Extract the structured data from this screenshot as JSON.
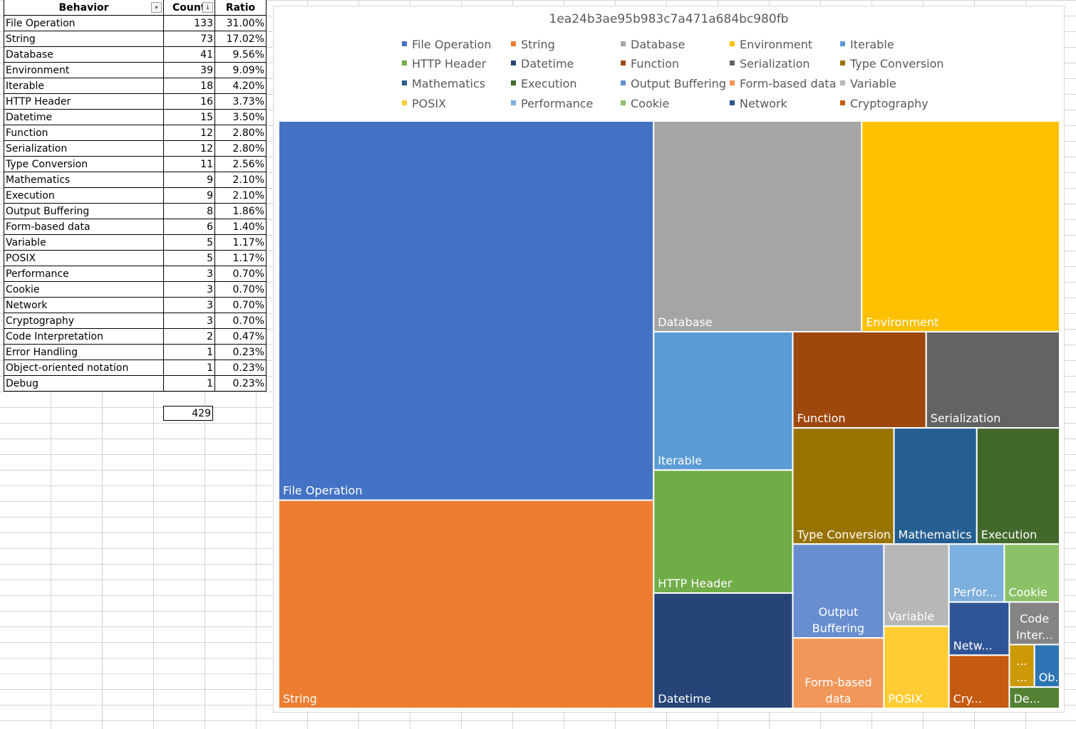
{
  "table": {
    "headers": {
      "behavior": "Behavior",
      "count": "Count",
      "ratio": "Ratio"
    },
    "rows": [
      {
        "behavior": "File Operation",
        "count": "133",
        "ratio": "31.00%"
      },
      {
        "behavior": "String",
        "count": "73",
        "ratio": "17.02%"
      },
      {
        "behavior": "Database",
        "count": "41",
        "ratio": "9.56%"
      },
      {
        "behavior": "Environment",
        "count": "39",
        "ratio": "9.09%"
      },
      {
        "behavior": "Iterable",
        "count": "18",
        "ratio": "4.20%"
      },
      {
        "behavior": "HTTP Header",
        "count": "16",
        "ratio": "3.73%"
      },
      {
        "behavior": "Datetime",
        "count": "15",
        "ratio": "3.50%"
      },
      {
        "behavior": "Function",
        "count": "12",
        "ratio": "2.80%"
      },
      {
        "behavior": "Serialization",
        "count": "12",
        "ratio": "2.80%"
      },
      {
        "behavior": "Type Conversion",
        "count": "11",
        "ratio": "2.56%"
      },
      {
        "behavior": "Mathematics",
        "count": "9",
        "ratio": "2.10%"
      },
      {
        "behavior": "Execution",
        "count": "9",
        "ratio": "2.10%"
      },
      {
        "behavior": "Output Buffering",
        "count": "8",
        "ratio": "1.86%"
      },
      {
        "behavior": "Form-based data",
        "count": "6",
        "ratio": "1.40%"
      },
      {
        "behavior": "Variable",
        "count": "5",
        "ratio": "1.17%"
      },
      {
        "behavior": "POSIX",
        "count": "5",
        "ratio": "1.17%"
      },
      {
        "behavior": "Performance",
        "count": "3",
        "ratio": "0.70%"
      },
      {
        "behavior": "Cookie",
        "count": "3",
        "ratio": "0.70%"
      },
      {
        "behavior": "Network",
        "count": "3",
        "ratio": "0.70%"
      },
      {
        "behavior": "Cryptography",
        "count": "3",
        "ratio": "0.70%"
      },
      {
        "behavior": "Code Interpretation",
        "count": "2",
        "ratio": "0.47%"
      },
      {
        "behavior": "Error Handling",
        "count": "1",
        "ratio": "0.23%"
      },
      {
        "behavior": "Object-oriented notation",
        "count": "1",
        "ratio": "0.23%"
      },
      {
        "behavior": "Debug",
        "count": "1",
        "ratio": "0.23%"
      }
    ],
    "total": "429"
  },
  "chart_data": {
    "type": "treemap",
    "title": "1ea24b3ae95b983c7a471a684bc980fb",
    "legend_position": "top",
    "legend": [
      "File Operation",
      "String",
      "Database",
      "Environment",
      "Iterable",
      "HTTP Header",
      "Datetime",
      "Function",
      "Serialization",
      "Type Conversion",
      "Mathematics",
      "Execution",
      "Output Buffering",
      "Form-based data",
      "Variable",
      "POSIX",
      "Performance",
      "Cookie",
      "Network",
      "Cryptography"
    ],
    "nodes": [
      {
        "name": "File Operation",
        "value": 133,
        "color": "#4472C4",
        "label": "File Operation"
      },
      {
        "name": "String",
        "value": 73,
        "color": "#ED7D31",
        "label": "String"
      },
      {
        "name": "Database",
        "value": 41,
        "color": "#A5A5A5",
        "label": "Database"
      },
      {
        "name": "Environment",
        "value": 39,
        "color": "#FFC000",
        "label": "Environment"
      },
      {
        "name": "Iterable",
        "value": 18,
        "color": "#5B9BD5",
        "label": "Iterable"
      },
      {
        "name": "HTTP Header",
        "value": 16,
        "color": "#70AD47",
        "label": "HTTP Header"
      },
      {
        "name": "Datetime",
        "value": 15,
        "color": "#264478",
        "label": "Datetime"
      },
      {
        "name": "Function",
        "value": 12,
        "color": "#9E480E",
        "label": "Function"
      },
      {
        "name": "Serialization",
        "value": 12,
        "color": "#636363",
        "label": "Serialization"
      },
      {
        "name": "Type Conversion",
        "value": 11,
        "color": "#997300",
        "label": "Type Conversion"
      },
      {
        "name": "Mathematics",
        "value": 9,
        "color": "#255E91",
        "label": "Mathematics"
      },
      {
        "name": "Execution",
        "value": 9,
        "color": "#43682B",
        "label": "Execution"
      },
      {
        "name": "Output Buffering",
        "value": 8,
        "color": "#698ED0",
        "label": "Output\nBuffering"
      },
      {
        "name": "Form-based data",
        "value": 6,
        "color": "#F1975A",
        "label": "Form-based\ndata"
      },
      {
        "name": "Variable",
        "value": 5,
        "color": "#B7B7B7",
        "label": "Variable"
      },
      {
        "name": "POSIX",
        "value": 5,
        "color": "#FFCD33",
        "label": "POSIX"
      },
      {
        "name": "Performance",
        "value": 3,
        "color": "#7CAFDD",
        "label": "Perfor..."
      },
      {
        "name": "Cookie",
        "value": 3,
        "color": "#8CC168",
        "label": "Cookie"
      },
      {
        "name": "Network",
        "value": 3,
        "color": "#2F5597",
        "label": "Netw..."
      },
      {
        "name": "Cryptography",
        "value": 3,
        "color": "#C55A11",
        "label": "Cry..."
      },
      {
        "name": "Code Interpretation",
        "value": 2,
        "color": "#848484",
        "label": "Code\nInter..."
      },
      {
        "name": "Error Handling",
        "value": 1,
        "color": "#CC9A06",
        "label": "...\n..."
      },
      {
        "name": "Object-oriented notation",
        "value": 1,
        "color": "#2E75B6",
        "label": "Ob..."
      },
      {
        "name": "Debug",
        "value": 1,
        "color": "#548235",
        "label": "De..."
      }
    ]
  }
}
